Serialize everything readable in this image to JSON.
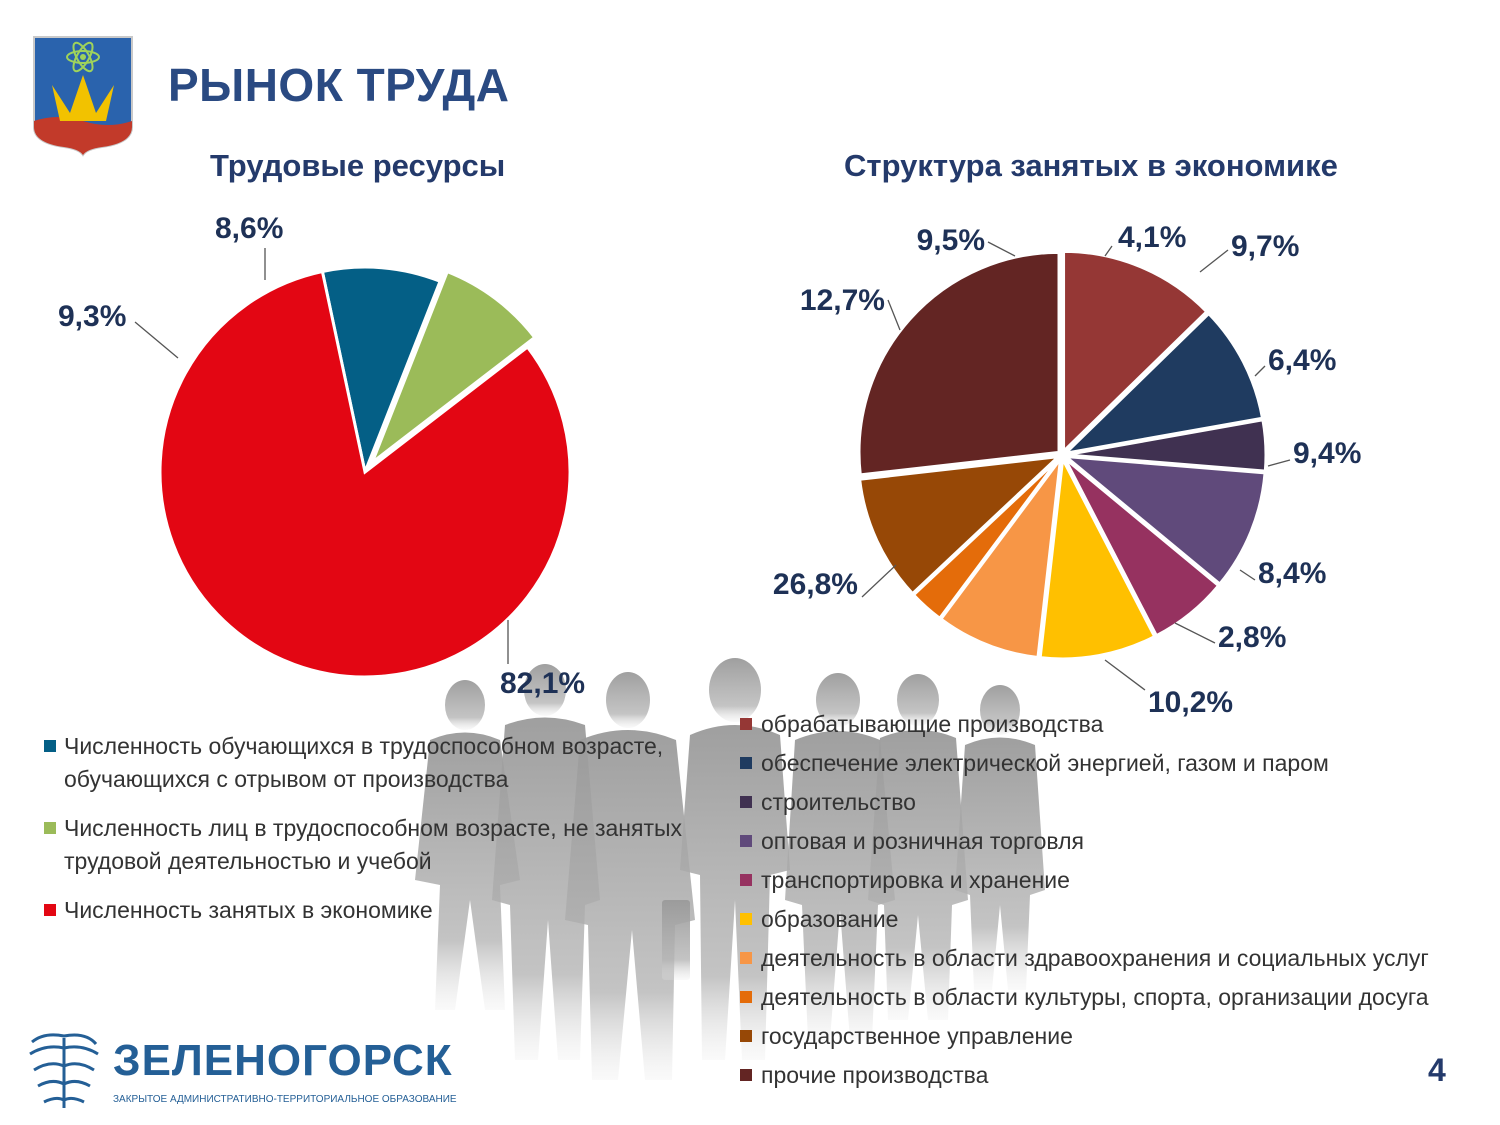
{
  "slide": {
    "title": "РЫНОК ТРУДА",
    "page_number": "4",
    "logo_text": "ЗЕЛЕНОГОРСК",
    "logo_subtitle": "ЗАКРЫТОЕ АДМИНИСТРАТИВНО-ТЕРРИТОРИАЛЬНОЕ ОБРАЗОВАНИЕ"
  },
  "chart_data": [
    {
      "type": "pie",
      "title": "Трудовые ресурсы",
      "legend_position": "bottom",
      "series": [
        {
          "name": "Численность обучающихся в трудоспособном возрасте, обучающихся с отрывом от производства",
          "value": 9.3,
          "label": "9,3%",
          "color": "#045f86"
        },
        {
          "name": "Численность лиц в трудоспособном возрасте, не занятых трудовой деятельностью и учебой",
          "value": 8.6,
          "label": "8,6%",
          "color": "#9bbb59"
        },
        {
          "name": "Численность занятых в экономике",
          "value": 82.1,
          "label": "82,1%",
          "color": "#e30613"
        }
      ]
    },
    {
      "type": "pie",
      "title": "Структура занятых в экономике",
      "legend_position": "bottom",
      "series": [
        {
          "name": "обрабатывающие производства",
          "value": 12.7,
          "label": "12,7%",
          "color": "#953735"
        },
        {
          "name": "обеспечение электрической энергией, газом и паром",
          "value": 9.5,
          "label": "9,5%",
          "color": "#1f3b60"
        },
        {
          "name": "строительство",
          "value": 4.1,
          "label": "4,1%",
          "color": "#403151"
        },
        {
          "name": "оптовая и розничная торговля",
          "value": 9.7,
          "label": "9,7%",
          "color": "#604a7b"
        },
        {
          "name": "транспортировка и хранение",
          "value": 6.4,
          "label": "6,4%",
          "color": "#963260"
        },
        {
          "name": "образование",
          "value": 9.4,
          "label": "9,4%",
          "color": "#ffc000"
        },
        {
          "name": "деятельность в области здравоохранения и социальных услуг",
          "value": 8.4,
          "label": "8,4%",
          "color": "#f79646"
        },
        {
          "name": "деятельность в области культуры, спорта, организации досуга",
          "value": 2.8,
          "label": "2,8%",
          "color": "#e46c0a"
        },
        {
          "name": "государственное управление",
          "value": 10.2,
          "label": "10,2%",
          "color": "#974806"
        },
        {
          "name": "прочие производства",
          "value": 26.8,
          "label": "26,8%",
          "color": "#632523"
        }
      ]
    }
  ]
}
